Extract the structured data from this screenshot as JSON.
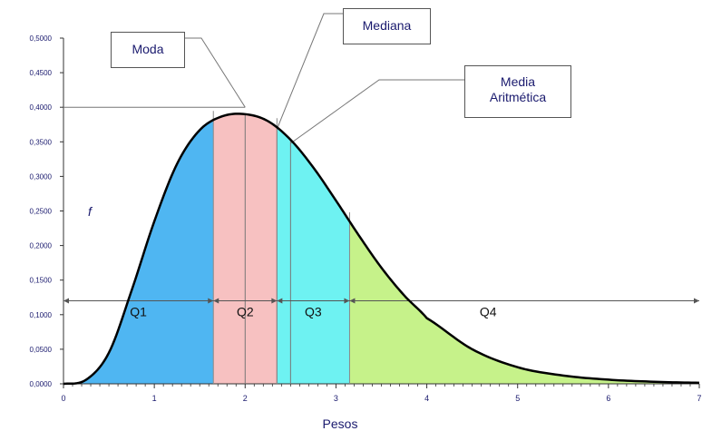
{
  "chart_data": {
    "type": "area",
    "x": [
      0,
      0.25,
      0.5,
      0.75,
      1,
      1.25,
      1.5,
      1.75,
      2,
      2.25,
      2.5,
      2.75,
      3,
      3.25,
      3.5,
      3.75,
      4,
      4.5,
      5,
      5.5,
      6,
      6.5,
      7
    ],
    "y": [
      0,
      0.006,
      0.045,
      0.135,
      0.235,
      0.318,
      0.367,
      0.387,
      0.39,
      0.38,
      0.353,
      0.313,
      0.265,
      0.215,
      0.168,
      0.128,
      0.095,
      0.05,
      0.024,
      0.012,
      0.006,
      0.003,
      0.0015
    ],
    "xlim": [
      0,
      7
    ],
    "ylim": [
      0,
      0.5
    ],
    "x_ticks": [
      "0",
      "1",
      "2",
      "3",
      "4",
      "5",
      "6",
      "7"
    ],
    "y_ticks": [
      "0,0000",
      "0,0500",
      "0,1000",
      "0,1500",
      "0,2000",
      "0,2500",
      "0,3000",
      "0,3500",
      "0,4000",
      "0,4500",
      "0,5000"
    ],
    "xlabel": "Pesos",
    "ylabel": "f",
    "quartile_bounds": [
      1.65,
      2.35,
      3.15
    ],
    "quartile_labels": [
      "Q1",
      "Q2",
      "Q3",
      "Q4"
    ],
    "quartile_colors": [
      "#4fb6f2",
      "#f7c1c1",
      "#6ef2f2",
      "#c6f28a"
    ],
    "reference_level": 0.12,
    "mode": 2.0,
    "median": 2.35,
    "mean": 2.5,
    "peak_value": 0.4,
    "annotations": {
      "moda": "Moda",
      "mediana": "Mediana",
      "media_line1": "Media",
      "media_line2": "Aritmética"
    }
  }
}
